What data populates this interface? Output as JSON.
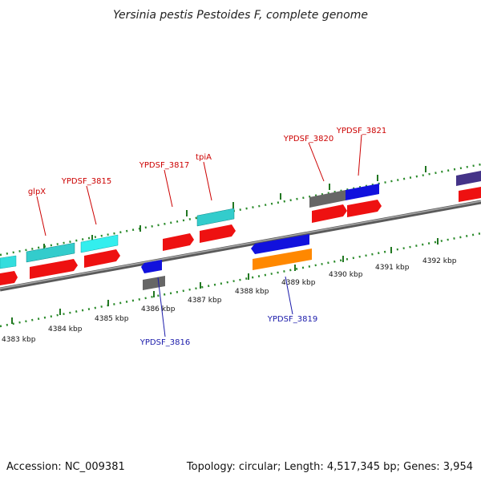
{
  "title": "Yersinia pestis Pestoides F, complete genome",
  "footer": {
    "accession": "Accession: NC_009381",
    "summary": "Topology: circular; Length: 4,517,345 bp; Genes: 3,954"
  },
  "ticks": [
    "4383 kbp",
    "4384 kbp",
    "4385 kbp",
    "4386 kbp",
    "4387 kbp",
    "4388 kbp",
    "4389 kbp",
    "4390 kbp",
    "4391 kbp",
    "4392 kbp"
  ],
  "gene_labels": {
    "glpX": "glpX",
    "ypdsf3815": "YPDSF_3815",
    "ypdsf3817": "YPDSF_3817",
    "tpiA": "tpiA",
    "ypdsf3820": "YPDSF_3820",
    "ypdsf3821": "YPDSF_3821",
    "ypdsf3816": "YPDSF_3816",
    "ypdsf3819": "YPDSF_3819"
  },
  "colors": {
    "red_label": "#cc0000",
    "blue_label": "#1a1aaa",
    "cds": "#ee1111",
    "cyan": "#33dddd",
    "blue": "#1111dd",
    "gray": "#666666",
    "orange": "#ff8800",
    "purple": "#443388",
    "backbone": "#888888",
    "tick_green": "#228822"
  }
}
